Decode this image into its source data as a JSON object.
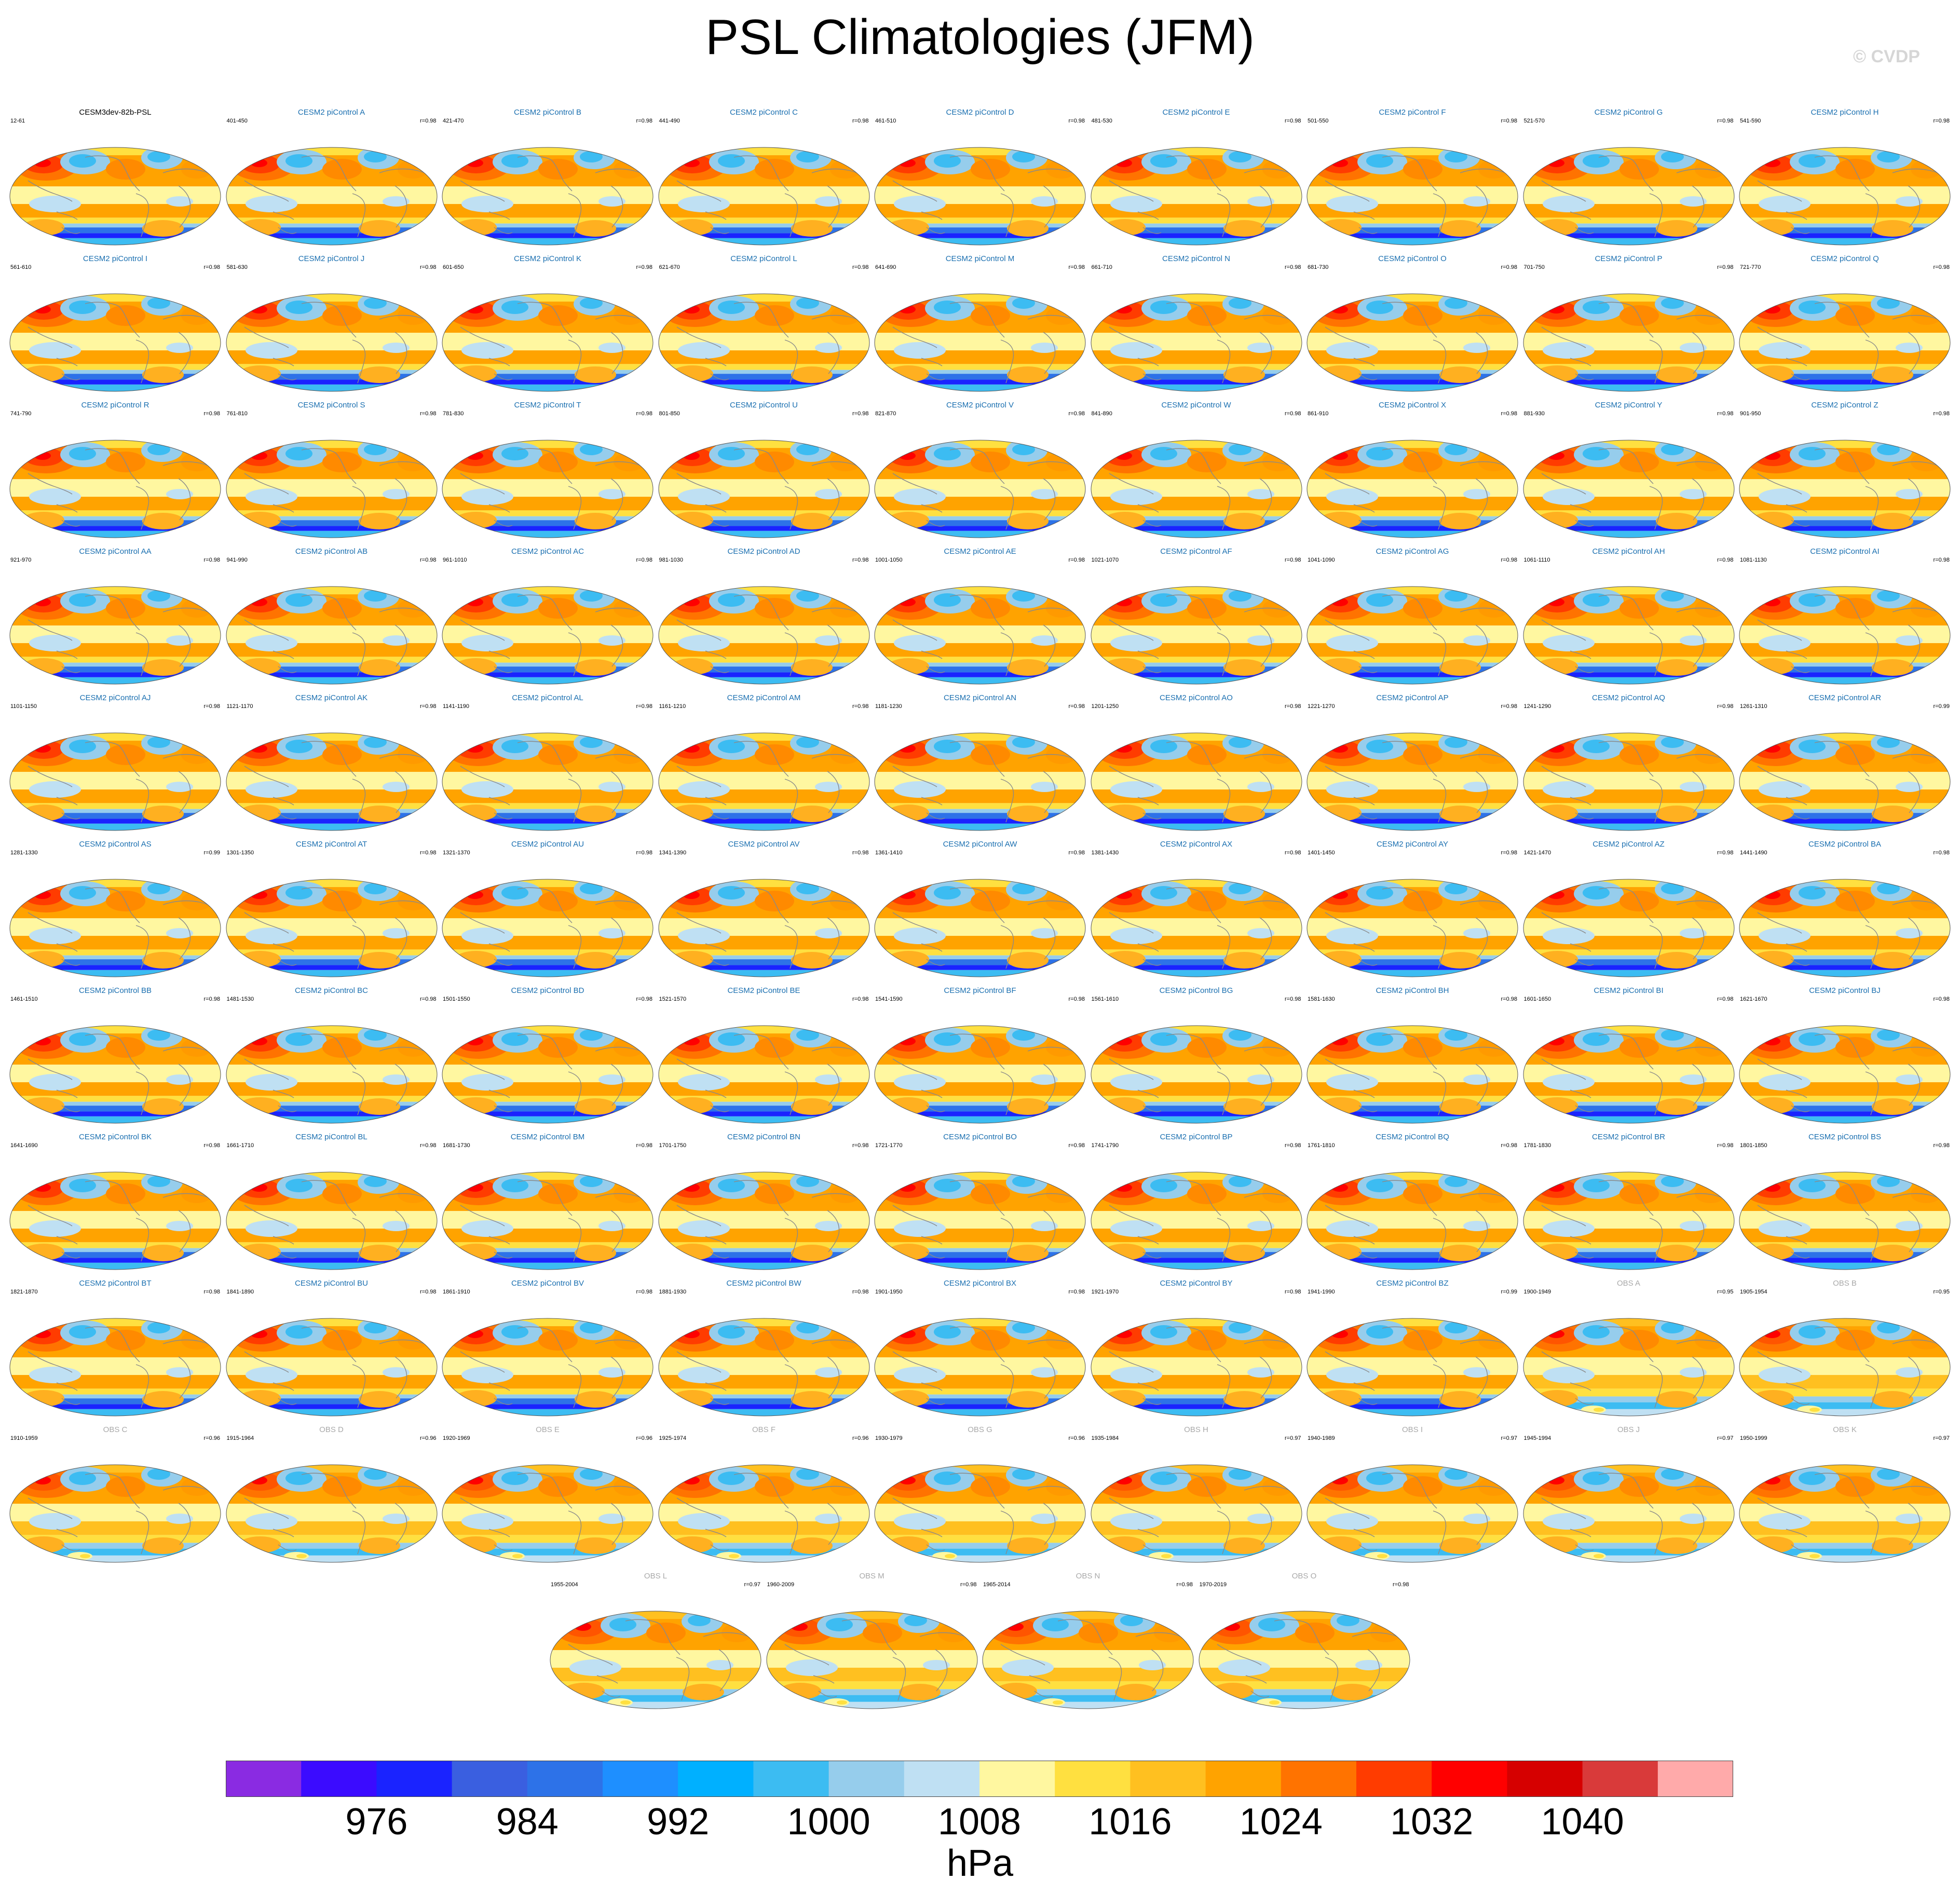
{
  "title": "PSL Climatologies (JFM)",
  "watermark": "© CVDP",
  "colors": {
    "model_title": "#1a6fb0",
    "obs_title": "#a9a9a9",
    "reference_title": "#000000",
    "coast": "#8a8a8a",
    "map_border": "#555555"
  },
  "colorbar": {
    "colors": [
      "#8a2be2",
      "#3b0bff",
      "#1a23ff",
      "#3a5fe0",
      "#2d72e8",
      "#1e8fff",
      "#00b0ff",
      "#3cbcf2",
      "#96cdec",
      "#bfe0f3",
      "#fff7a0",
      "#ffe040",
      "#ffc020",
      "#ffa300",
      "#ff7300",
      "#ff3c00",
      "#ff0000",
      "#d60000",
      "#d93a3a",
      "#ffaaaa"
    ],
    "tick_labels": [
      "976",
      "984",
      "992",
      "1000",
      "1008",
      "1016",
      "1024",
      "1032",
      "1040"
    ],
    "units": "hPa"
  },
  "chart_data": {
    "type": "map_grid",
    "variable": "PSL",
    "season": "JFM",
    "panels": [
      {
        "name": "CESM3dev-82b-PSL",
        "years": "12-61",
        "r": "",
        "kind": "reference"
      },
      {
        "name": "CESM2 piControl A",
        "years": "401-450",
        "r": "r=0.98",
        "kind": "model"
      },
      {
        "name": "CESM2 piControl B",
        "years": "421-470",
        "r": "r=0.98",
        "kind": "model"
      },
      {
        "name": "CESM2 piControl C",
        "years": "441-490",
        "r": "r=0.98",
        "kind": "model"
      },
      {
        "name": "CESM2 piControl D",
        "years": "461-510",
        "r": "r=0.98",
        "kind": "model"
      },
      {
        "name": "CESM2 piControl E",
        "years": "481-530",
        "r": "r=0.98",
        "kind": "model"
      },
      {
        "name": "CESM2 piControl F",
        "years": "501-550",
        "r": "r=0.98",
        "kind": "model"
      },
      {
        "name": "CESM2 piControl G",
        "years": "521-570",
        "r": "r=0.98",
        "kind": "model"
      },
      {
        "name": "CESM2 piControl H",
        "years": "541-590",
        "r": "r=0.98",
        "kind": "model"
      },
      {
        "name": "CESM2 piControl I",
        "years": "561-610",
        "r": "r=0.98",
        "kind": "model"
      },
      {
        "name": "CESM2 piControl J",
        "years": "581-630",
        "r": "r=0.98",
        "kind": "model"
      },
      {
        "name": "CESM2 piControl K",
        "years": "601-650",
        "r": "r=0.98",
        "kind": "model"
      },
      {
        "name": "CESM2 piControl L",
        "years": "621-670",
        "r": "r=0.98",
        "kind": "model"
      },
      {
        "name": "CESM2 piControl M",
        "years": "641-690",
        "r": "r=0.98",
        "kind": "model"
      },
      {
        "name": "CESM2 piControl N",
        "years": "661-710",
        "r": "r=0.98",
        "kind": "model"
      },
      {
        "name": "CESM2 piControl O",
        "years": "681-730",
        "r": "r=0.98",
        "kind": "model"
      },
      {
        "name": "CESM2 piControl P",
        "years": "701-750",
        "r": "r=0.98",
        "kind": "model"
      },
      {
        "name": "CESM2 piControl Q",
        "years": "721-770",
        "r": "r=0.98",
        "kind": "model"
      },
      {
        "name": "CESM2 piControl R",
        "years": "741-790",
        "r": "r=0.98",
        "kind": "model"
      },
      {
        "name": "CESM2 piControl S",
        "years": "761-810",
        "r": "r=0.98",
        "kind": "model"
      },
      {
        "name": "CESM2 piControl T",
        "years": "781-830",
        "r": "r=0.98",
        "kind": "model"
      },
      {
        "name": "CESM2 piControl U",
        "years": "801-850",
        "r": "r=0.98",
        "kind": "model"
      },
      {
        "name": "CESM2 piControl V",
        "years": "821-870",
        "r": "r=0.98",
        "kind": "model"
      },
      {
        "name": "CESM2 piControl W",
        "years": "841-890",
        "r": "r=0.98",
        "kind": "model"
      },
      {
        "name": "CESM2 piControl X",
        "years": "861-910",
        "r": "r=0.98",
        "kind": "model"
      },
      {
        "name": "CESM2 piControl Y",
        "years": "881-930",
        "r": "r=0.98",
        "kind": "model"
      },
      {
        "name": "CESM2 piControl Z",
        "years": "901-950",
        "r": "r=0.98",
        "kind": "model"
      },
      {
        "name": "CESM2 piControl AA",
        "years": "921-970",
        "r": "r=0.98",
        "kind": "model"
      },
      {
        "name": "CESM2 piControl AB",
        "years": "941-990",
        "r": "r=0.98",
        "kind": "model"
      },
      {
        "name": "CESM2 piControl AC",
        "years": "961-1010",
        "r": "r=0.98",
        "kind": "model"
      },
      {
        "name": "CESM2 piControl AD",
        "years": "981-1030",
        "r": "r=0.98",
        "kind": "model"
      },
      {
        "name": "CESM2 piControl AE",
        "years": "1001-1050",
        "r": "r=0.98",
        "kind": "model"
      },
      {
        "name": "CESM2 piControl AF",
        "years": "1021-1070",
        "r": "r=0.98",
        "kind": "model"
      },
      {
        "name": "CESM2 piControl AG",
        "years": "1041-1090",
        "r": "r=0.98",
        "kind": "model"
      },
      {
        "name": "CESM2 piControl AH",
        "years": "1061-1110",
        "r": "r=0.98",
        "kind": "model"
      },
      {
        "name": "CESM2 piControl AI",
        "years": "1081-1130",
        "r": "r=0.98",
        "kind": "model"
      },
      {
        "name": "CESM2 piControl AJ",
        "years": "1101-1150",
        "r": "r=0.98",
        "kind": "model"
      },
      {
        "name": "CESM2 piControl AK",
        "years": "1121-1170",
        "r": "r=0.98",
        "kind": "model"
      },
      {
        "name": "CESM2 piControl AL",
        "years": "1141-1190",
        "r": "r=0.98",
        "kind": "model"
      },
      {
        "name": "CESM2 piControl AM",
        "years": "1161-1210",
        "r": "r=0.98",
        "kind": "model"
      },
      {
        "name": "CESM2 piControl AN",
        "years": "1181-1230",
        "r": "r=0.98",
        "kind": "model"
      },
      {
        "name": "CESM2 piControl AO",
        "years": "1201-1250",
        "r": "r=0.98",
        "kind": "model"
      },
      {
        "name": "CESM2 piControl AP",
        "years": "1221-1270",
        "r": "r=0.98",
        "kind": "model"
      },
      {
        "name": "CESM2 piControl AQ",
        "years": "1241-1290",
        "r": "r=0.98",
        "kind": "model"
      },
      {
        "name": "CESM2 piControl AR",
        "years": "1261-1310",
        "r": "r=0.99",
        "kind": "model"
      },
      {
        "name": "CESM2 piControl AS",
        "years": "1281-1330",
        "r": "r=0.99",
        "kind": "model"
      },
      {
        "name": "CESM2 piControl AT",
        "years": "1301-1350",
        "r": "r=0.98",
        "kind": "model"
      },
      {
        "name": "CESM2 piControl AU",
        "years": "1321-1370",
        "r": "r=0.98",
        "kind": "model"
      },
      {
        "name": "CESM2 piControl AV",
        "years": "1341-1390",
        "r": "r=0.98",
        "kind": "model"
      },
      {
        "name": "CESM2 piControl AW",
        "years": "1361-1410",
        "r": "r=0.98",
        "kind": "model"
      },
      {
        "name": "CESM2 piControl AX",
        "years": "1381-1430",
        "r": "r=0.98",
        "kind": "model"
      },
      {
        "name": "CESM2 piControl AY",
        "years": "1401-1450",
        "r": "r=0.98",
        "kind": "model"
      },
      {
        "name": "CESM2 piControl AZ",
        "years": "1421-1470",
        "r": "r=0.98",
        "kind": "model"
      },
      {
        "name": "CESM2 piControl BA",
        "years": "1441-1490",
        "r": "r=0.98",
        "kind": "model"
      },
      {
        "name": "CESM2 piControl BB",
        "years": "1461-1510",
        "r": "r=0.98",
        "kind": "model"
      },
      {
        "name": "CESM2 piControl BC",
        "years": "1481-1530",
        "r": "r=0.98",
        "kind": "model"
      },
      {
        "name": "CESM2 piControl BD",
        "years": "1501-1550",
        "r": "r=0.98",
        "kind": "model"
      },
      {
        "name": "CESM2 piControl BE",
        "years": "1521-1570",
        "r": "r=0.98",
        "kind": "model"
      },
      {
        "name": "CESM2 piControl BF",
        "years": "1541-1590",
        "r": "r=0.98",
        "kind": "model"
      },
      {
        "name": "CESM2 piControl BG",
        "years": "1561-1610",
        "r": "r=0.98",
        "kind": "model"
      },
      {
        "name": "CESM2 piControl BH",
        "years": "1581-1630",
        "r": "r=0.98",
        "kind": "model"
      },
      {
        "name": "CESM2 piControl BI",
        "years": "1601-1650",
        "r": "r=0.98",
        "kind": "model"
      },
      {
        "name": "CESM2 piControl BJ",
        "years": "1621-1670",
        "r": "r=0.98",
        "kind": "model"
      },
      {
        "name": "CESM2 piControl BK",
        "years": "1641-1690",
        "r": "r=0.98",
        "kind": "model"
      },
      {
        "name": "CESM2 piControl BL",
        "years": "1661-1710",
        "r": "r=0.98",
        "kind": "model"
      },
      {
        "name": "CESM2 piControl BM",
        "years": "1681-1730",
        "r": "r=0.98",
        "kind": "model"
      },
      {
        "name": "CESM2 piControl BN",
        "years": "1701-1750",
        "r": "r=0.98",
        "kind": "model"
      },
      {
        "name": "CESM2 piControl BO",
        "years": "1721-1770",
        "r": "r=0.98",
        "kind": "model"
      },
      {
        "name": "CESM2 piControl BP",
        "years": "1741-1790",
        "r": "r=0.98",
        "kind": "model"
      },
      {
        "name": "CESM2 piControl BQ",
        "years": "1761-1810",
        "r": "r=0.98",
        "kind": "model"
      },
      {
        "name": "CESM2 piControl BR",
        "years": "1781-1830",
        "r": "r=0.98",
        "kind": "model"
      },
      {
        "name": "CESM2 piControl BS",
        "years": "1801-1850",
        "r": "r=0.98",
        "kind": "model"
      },
      {
        "name": "CESM2 piControl BT",
        "years": "1821-1870",
        "r": "r=0.98",
        "kind": "model"
      },
      {
        "name": "CESM2 piControl BU",
        "years": "1841-1890",
        "r": "r=0.98",
        "kind": "model"
      },
      {
        "name": "CESM2 piControl BV",
        "years": "1861-1910",
        "r": "r=0.98",
        "kind": "model"
      },
      {
        "name": "CESM2 piControl BW",
        "years": "1881-1930",
        "r": "r=0.98",
        "kind": "model"
      },
      {
        "name": "CESM2 piControl BX",
        "years": "1901-1950",
        "r": "r=0.98",
        "kind": "model"
      },
      {
        "name": "CESM2 piControl BY",
        "years": "1921-1970",
        "r": "r=0.98",
        "kind": "model"
      },
      {
        "name": "CESM2 piControl BZ",
        "years": "1941-1990",
        "r": "r=0.99",
        "kind": "model"
      },
      {
        "name": "OBS A",
        "years": "1900-1949",
        "r": "r=0.95",
        "kind": "obs"
      },
      {
        "name": "OBS B",
        "years": "1905-1954",
        "r": "r=0.95",
        "kind": "obs"
      },
      {
        "name": "OBS C",
        "years": "1910-1959",
        "r": "r=0.96",
        "kind": "obs"
      },
      {
        "name": "OBS D",
        "years": "1915-1964",
        "r": "r=0.96",
        "kind": "obs"
      },
      {
        "name": "OBS E",
        "years": "1920-1969",
        "r": "r=0.96",
        "kind": "obs"
      },
      {
        "name": "OBS F",
        "years": "1925-1974",
        "r": "r=0.96",
        "kind": "obs"
      },
      {
        "name": "OBS G",
        "years": "1930-1979",
        "r": "r=0.96",
        "kind": "obs"
      },
      {
        "name": "OBS H",
        "years": "1935-1984",
        "r": "r=0.97",
        "kind": "obs"
      },
      {
        "name": "OBS I",
        "years": "1940-1989",
        "r": "r=0.97",
        "kind": "obs"
      },
      {
        "name": "OBS J",
        "years": "1945-1994",
        "r": "r=0.97",
        "kind": "obs"
      },
      {
        "name": "OBS K",
        "years": "1950-1999",
        "r": "r=0.97",
        "kind": "obs"
      },
      {
        "name": "OBS L",
        "years": "1955-2004",
        "r": "r=0.97",
        "kind": "obs"
      },
      {
        "name": "OBS M",
        "years": "1960-2009",
        "r": "r=0.98",
        "kind": "obs"
      },
      {
        "name": "OBS N",
        "years": "1965-2014",
        "r": "r=0.98",
        "kind": "obs"
      },
      {
        "name": "OBS O",
        "years": "1970-2019",
        "r": "r=0.98",
        "kind": "obs"
      }
    ]
  }
}
